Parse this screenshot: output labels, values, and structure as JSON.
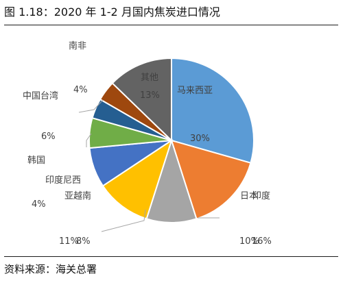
{
  "figure": {
    "title": "图 1.18：2020 年 1-2 月国内焦炭进口情况",
    "source": "资料来源：海关总署"
  },
  "chart_data": {
    "type": "pie",
    "title": "",
    "slices": [
      {
        "label": "马来西亚",
        "value": 30,
        "value_label": "30%",
        "color": "#5b9bd5"
      },
      {
        "label": "日本",
        "value": 16,
        "value_label": "16%",
        "color": "#ed7d31"
      },
      {
        "label": "印度",
        "value": 10,
        "value_label": "10%",
        "color": "#a5a5a5"
      },
      {
        "label": "亚越南",
        "value": 11,
        "value_label": "11%",
        "color": "#ffc000"
      },
      {
        "label": "印度尼西",
        "value": 8,
        "value_label": "8%",
        "color": "#4472c4"
      },
      {
        "label": "韩国",
        "value": 6,
        "value_label": "6%",
        "color": "#70ad47"
      },
      {
        "label": "中国台湾",
        "value": 4,
        "value_label": "4%",
        "color": "#255e91"
      },
      {
        "label": "南非",
        "value": 4,
        "value_label": "4%",
        "color": "#9e480e"
      },
      {
        "label": "其他",
        "value": 13,
        "value_label": "13%",
        "color": "#636363"
      }
    ],
    "legend": "none"
  }
}
